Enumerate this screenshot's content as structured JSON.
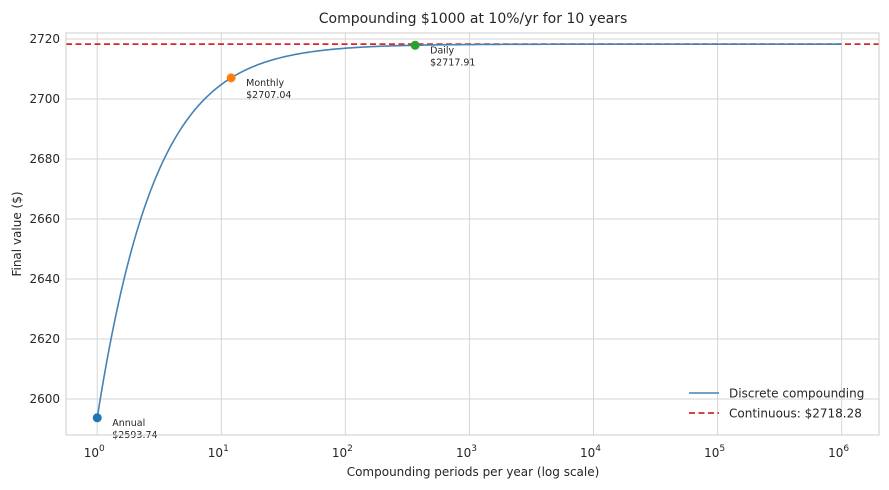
{
  "chart_data": {
    "type": "line",
    "title": "Compounding $1000 at 10%/yr for 10 years",
    "xlabel": "Compounding periods per year (log scale)",
    "ylabel": "Final value ($)",
    "x_scale": "log",
    "xlim": [
      0.56,
      2000000
    ],
    "ylim": [
      2588,
      2722
    ],
    "x_ticks": [
      {
        "base": "10",
        "exp": "0",
        "value": 1
      },
      {
        "base": "10",
        "exp": "1",
        "value": 10
      },
      {
        "base": "10",
        "exp": "2",
        "value": 100
      },
      {
        "base": "10",
        "exp": "3",
        "value": 1000
      },
      {
        "base": "10",
        "exp": "4",
        "value": 10000
      },
      {
        "base": "10",
        "exp": "5",
        "value": 100000
      },
      {
        "base": "10",
        "exp": "6",
        "value": 1000000
      }
    ],
    "y_ticks": [
      2600,
      2620,
      2640,
      2660,
      2680,
      2700,
      2720
    ],
    "principal": 1000,
    "rate": 0.1,
    "years": 10,
    "series": [
      {
        "name": "Discrete compounding",
        "color": "#4682b4",
        "style": "solid",
        "formula": "1000*(1+0.1/n)^(10n)",
        "x_range": [
          1,
          1000000
        ]
      },
      {
        "name": "Continuous: $2718.28",
        "color": "#d62728",
        "style": "dashed",
        "y": 2718.28
      }
    ],
    "points": [
      {
        "x": 1,
        "y": 2593.74,
        "label_line1": "Annual",
        "label_line2": "$2593.74",
        "color": "#1f77b4"
      },
      {
        "x": 12,
        "y": 2707.04,
        "label_line1": "Monthly",
        "label_line2": "$2707.04",
        "color": "#ff7f0e"
      },
      {
        "x": 365,
        "y": 2717.91,
        "label_line1": "Daily",
        "label_line2": "$2717.91",
        "color": "#2ca02c"
      }
    ],
    "grid": true,
    "legend_position": "lower-right"
  }
}
